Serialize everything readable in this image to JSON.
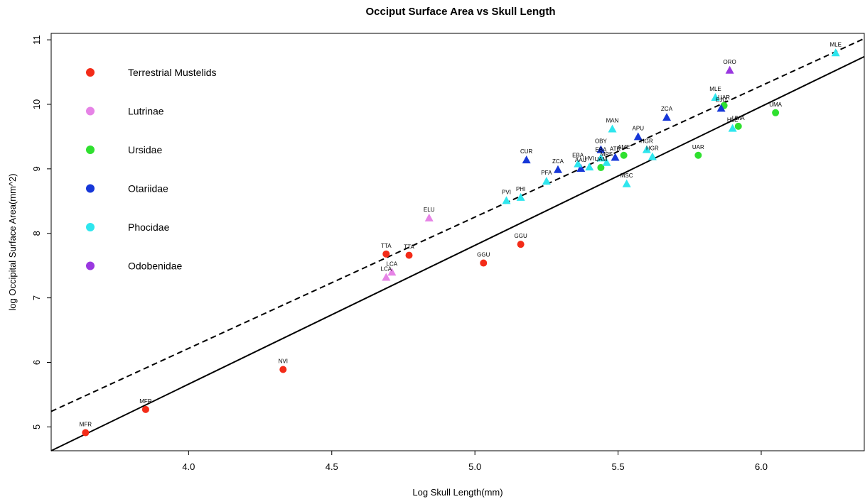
{
  "chart_data": {
    "type": "scatter",
    "title": "Occiput Surface Area vs Skull Length",
    "xlabel": "Log Skull Length(mm)",
    "ylabel": "log Occipital Surface Area(mm^2)",
    "xlim": [
      3.52,
      6.36
    ],
    "ylim": [
      4.63,
      11.1
    ],
    "xticks": [
      "4.0",
      "4.5",
      "5.0",
      "5.5",
      "6.0"
    ],
    "xtick_values": [
      4.0,
      4.5,
      5.0,
      5.5,
      6.0
    ],
    "yticks": [
      "5",
      "6",
      "7",
      "8",
      "9",
      "10",
      "11"
    ],
    "ytick_values": [
      5,
      6,
      7,
      8,
      9,
      10,
      11
    ],
    "grid": false,
    "legend_position": "top-left",
    "series": [
      {
        "name": "Terrestrial Mustelids",
        "color": "#f32b18",
        "marker": "circle",
        "points": [
          {
            "x": 3.64,
            "y": 4.91,
            "label": "MFR"
          },
          {
            "x": 3.85,
            "y": 5.27,
            "label": "MFR"
          },
          {
            "x": 4.33,
            "y": 5.89,
            "label": "NVI"
          },
          {
            "x": 4.69,
            "y": 7.68,
            "label": "TTA"
          },
          {
            "x": 4.77,
            "y": 7.66,
            "label": "TTA"
          },
          {
            "x": 5.03,
            "y": 7.54,
            "label": "GGU"
          },
          {
            "x": 5.16,
            "y": 7.83,
            "label": "GGU"
          }
        ]
      },
      {
        "name": "Lutrinae",
        "color": "#e683e6",
        "marker": "triangle",
        "points": [
          {
            "x": 4.69,
            "y": 7.32,
            "label": "LCA"
          },
          {
            "x": 4.71,
            "y": 7.4,
            "label": "LCA"
          },
          {
            "x": 4.84,
            "y": 8.24,
            "label": "ELU"
          }
        ]
      },
      {
        "name": "Ursidae",
        "color": "#2fe02f",
        "marker": "circle",
        "points": [
          {
            "x": 5.44,
            "y": 9.02,
            "label": "UAM"
          },
          {
            "x": 5.52,
            "y": 9.21,
            "label": "AME"
          },
          {
            "x": 5.78,
            "y": 9.21,
            "label": "UAR"
          },
          {
            "x": 5.87,
            "y": 9.98,
            "label": "UAR"
          },
          {
            "x": 5.92,
            "y": 9.66,
            "label": "UMA"
          },
          {
            "x": 6.05,
            "y": 9.87,
            "label": "UMA"
          }
        ]
      },
      {
        "name": "Otariidae",
        "color": "#1637d8",
        "marker": "triangle",
        "points": [
          {
            "x": 5.18,
            "y": 9.14,
            "label": "CUR"
          },
          {
            "x": 5.29,
            "y": 8.99,
            "label": "ZCA"
          },
          {
            "x": 5.37,
            "y": 9.01,
            "label": "AAU"
          },
          {
            "x": 5.44,
            "y": 9.3,
            "label": "OBY"
          },
          {
            "x": 5.49,
            "y": 9.18,
            "label": "ATR"
          },
          {
            "x": 5.57,
            "y": 9.5,
            "label": "APU"
          },
          {
            "x": 5.67,
            "y": 9.8,
            "label": "ZCA"
          },
          {
            "x": 5.86,
            "y": 9.94,
            "label": "EJU"
          }
        ]
      },
      {
        "name": "Phocidae",
        "color": "#2ee6ee",
        "marker": "triangle",
        "points": [
          {
            "x": 5.11,
            "y": 8.51,
            "label": "PVI"
          },
          {
            "x": 5.16,
            "y": 8.56,
            "label": "PHI"
          },
          {
            "x": 5.25,
            "y": 8.81,
            "label": "PFA"
          },
          {
            "x": 5.36,
            "y": 9.08,
            "label": "EBA"
          },
          {
            "x": 5.4,
            "y": 9.03,
            "label": "HVI"
          },
          {
            "x": 5.44,
            "y": 9.17,
            "label": "EBA"
          },
          {
            "x": 5.46,
            "y": 9.1,
            "label": "MPS"
          },
          {
            "x": 5.48,
            "y": 9.62,
            "label": "MAN"
          },
          {
            "x": 5.53,
            "y": 8.77,
            "label": "MSC"
          },
          {
            "x": 5.6,
            "y": 9.3,
            "label": "HGR"
          },
          {
            "x": 5.62,
            "y": 9.19,
            "label": "HGR"
          },
          {
            "x": 5.84,
            "y": 10.11,
            "label": "MLE"
          },
          {
            "x": 5.9,
            "y": 9.63,
            "label": "HLE"
          },
          {
            "x": 6.26,
            "y": 10.8,
            "label": "MLE"
          }
        ]
      },
      {
        "name": "Odobenidae",
        "color": "#9a38e0",
        "marker": "triangle",
        "points": [
          {
            "x": 5.89,
            "y": 10.53,
            "label": "ORO"
          }
        ]
      }
    ],
    "lines": [
      {
        "style": "solid",
        "x1": 3.52,
        "y1": 4.63,
        "x2": 6.36,
        "y2": 10.74
      },
      {
        "style": "dashed",
        "x1": 3.52,
        "y1": 5.24,
        "x2": 6.36,
        "y2": 11.02
      }
    ]
  }
}
